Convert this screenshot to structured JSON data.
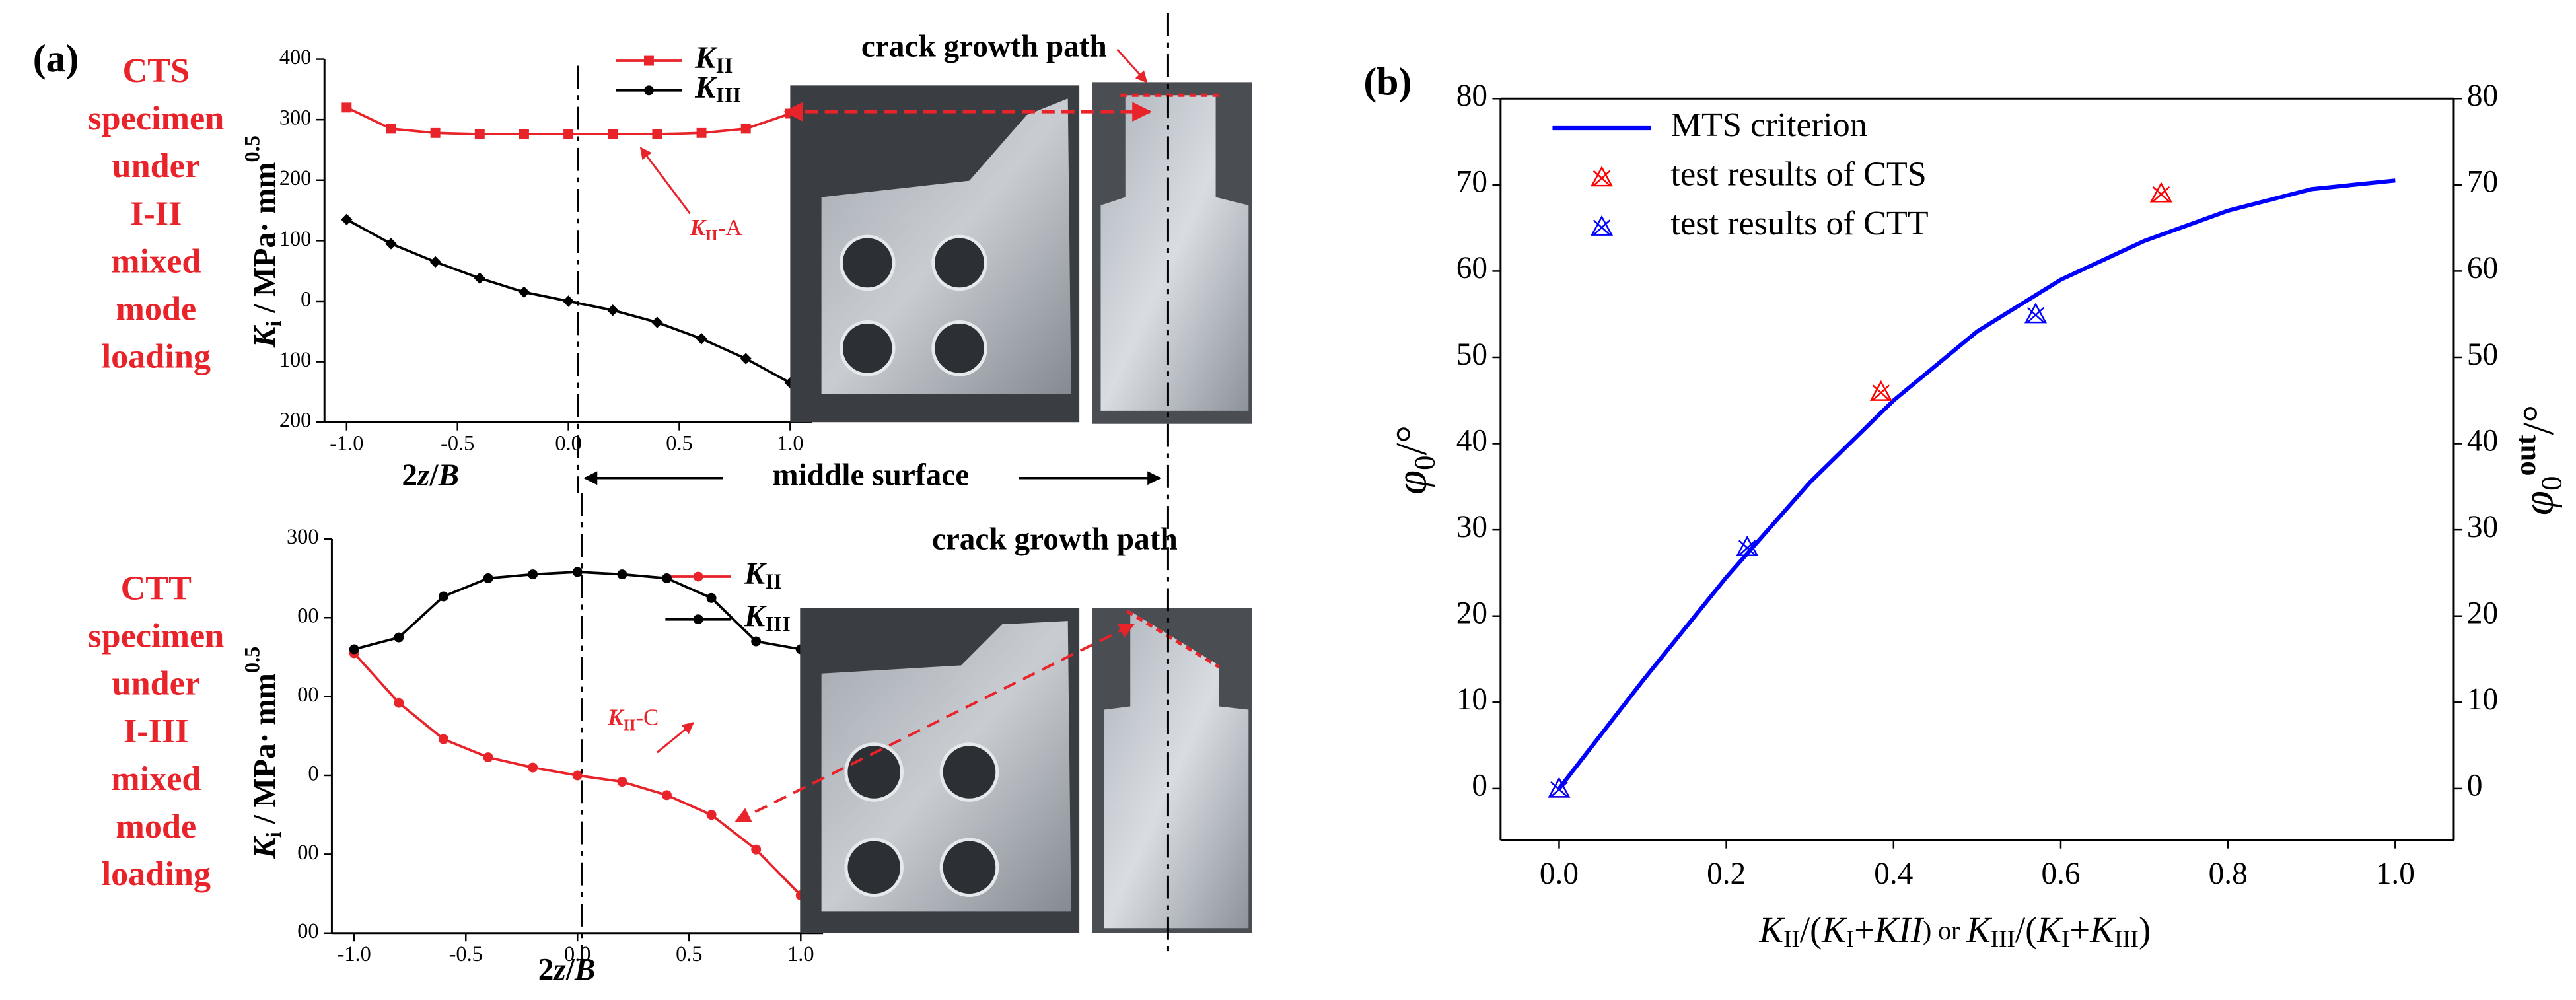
{
  "chart_data": [
    {
      "type": "line",
      "panel": "(a)",
      "side_label": [
        "CTS",
        "specimen",
        "under",
        "I-II",
        "mixed",
        "mode",
        "loading"
      ],
      "annotations": [
        "crack growth path",
        "KII-A",
        "middle surface"
      ],
      "x_label": [
        "2",
        "z",
        "/",
        "B"
      ],
      "y_label": [
        "K",
        "i",
        " / MPa· mm",
        "0.5"
      ],
      "x": [
        -1.0,
        -0.8,
        -0.6,
        -0.4,
        -0.2,
        0.0,
        0.2,
        0.4,
        0.6,
        0.8,
        1.0
      ],
      "series": [
        {
          "name": "KII",
          "color": "#e8232a",
          "marker": "square",
          "values": [
            320,
            285,
            278,
            276,
            276,
            276,
            276,
            276,
            278,
            285,
            310
          ]
        },
        {
          "name": "KIII",
          "color": "#000000",
          "marker": "diamond",
          "values": [
            135,
            95,
            65,
            38,
            15,
            0,
            -15,
            -35,
            -62,
            -95,
            -135
          ]
        }
      ],
      "xlim": [
        -1.1,
        1.1
      ],
      "ylim": [
        -200,
        400
      ],
      "xticks": [
        {
          "value": -1.0,
          "label": "-1.0"
        },
        -0.5,
        {
          "value": 0.0,
          "label": "0.0"
        },
        0.5,
        {
          "value": 1.0,
          "label": "1.0"
        }
      ],
      "yticks": [
        400,
        300,
        200,
        100,
        0,
        {
          "value": -100,
          "label": "100"
        },
        {
          "value": -200,
          "label": "200"
        }
      ]
    },
    {
      "type": "line",
      "side_label": [
        "CTT",
        "specimen",
        "under",
        "I-III",
        "mixed",
        "mode",
        "loading"
      ],
      "annotations": [
        "crack growth path",
        "KII-C"
      ],
      "x_label": [
        "2",
        "z",
        "/",
        "B"
      ],
      "y_label": [
        "K",
        "i",
        " / MPa· mm",
        "0.5"
      ],
      "x": [
        -1.0,
        -0.8,
        -0.6,
        -0.4,
        -0.2,
        0.0,
        0.2,
        0.4,
        0.6,
        0.8,
        1.0
      ],
      "series": [
        {
          "name": "KII",
          "color": "#e8232a",
          "marker": "circle",
          "values": [
            155,
            92,
            46,
            23,
            10,
            0,
            -8,
            -25,
            -50,
            -94,
            -152
          ]
        },
        {
          "name": "KIII",
          "color": "#000000",
          "marker": "circle",
          "values": [
            160,
            175,
            227,
            250,
            255,
            258,
            255,
            250,
            225,
            170,
            160
          ]
        }
      ],
      "xlim": [
        -1.1,
        1.1
      ],
      "ylim": [
        -200,
        300
      ],
      "xticks": [
        {
          "value": -1.0,
          "label": "-1.0"
        },
        -0.5,
        {
          "value": 0.0,
          "label": "0.0"
        },
        0.5,
        {
          "value": 1.0,
          "label": "1.0"
        }
      ],
      "yticks": [
        300,
        {
          "value": 200,
          "label": "00"
        },
        {
          "value": 100,
          "label": "00"
        },
        0,
        {
          "value": -100,
          "label": "00"
        },
        {
          "value": -200,
          "label": "00"
        }
      ]
    },
    {
      "type": "line",
      "panel": "(b)",
      "x_label": [
        "K",
        "II",
        "/(",
        "K",
        "I",
        "+",
        "KII",
        ") or ",
        "K",
        "III",
        "/(",
        "K",
        "I",
        "+",
        "K",
        "III",
        ")"
      ],
      "y_label": [
        "φ",
        "0",
        "/°"
      ],
      "y2_label": [
        "φ",
        "0",
        "out",
        "/°"
      ],
      "series": [
        {
          "name": "MTS criterion",
          "type": "line",
          "color": "#0000ff",
          "x": [
            0,
            0.1,
            0.2,
            0.3,
            0.4,
            0.5,
            0.6,
            0.7,
            0.8,
            0.9,
            1.0
          ],
          "values": [
            0,
            12.5,
            24.5,
            35.5,
            45,
            53,
            59,
            63.5,
            67,
            69.5,
            70.5
          ]
        },
        {
          "name": "test results of CTS",
          "type": "scatter",
          "color": "#ff0000",
          "x": [
            0,
            0.385,
            0.72
          ],
          "values": [
            0,
            46,
            69
          ]
        },
        {
          "name": "test results of CTT",
          "type": "scatter",
          "color": "#0000ff",
          "x": [
            0,
            0.225,
            0.57
          ],
          "values": [
            0,
            28,
            55
          ]
        }
      ],
      "xlim": [
        -0.07,
        1.07
      ],
      "ylim": [
        -6,
        80
      ],
      "y2lim": [
        -6,
        80
      ],
      "xticks": [
        {
          "value": 0.0,
          "label": "0.0"
        },
        0.2,
        0.4,
        0.6,
        0.8,
        {
          "value": 1.0,
          "label": "1.0"
        }
      ],
      "yticks": [
        0,
        10,
        20,
        30,
        40,
        50,
        60,
        70,
        80
      ],
      "y2ticks": [
        0,
        10,
        20,
        30,
        40,
        50,
        60,
        70,
        80
      ]
    }
  ]
}
